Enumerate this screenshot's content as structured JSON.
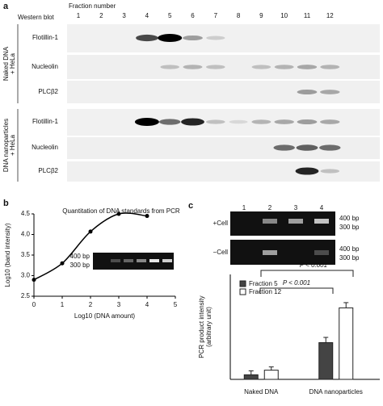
{
  "panel_a": {
    "label": "a",
    "method": "Western blot",
    "fraction_header": "Fraction number",
    "fractions": [
      "1",
      "2",
      "3",
      "4",
      "5",
      "6",
      "7",
      "8",
      "9",
      "10",
      "11",
      "12"
    ],
    "groups": [
      {
        "lines": [
          "Naked DNA",
          "+ HeLa"
        ],
        "rows": [
          "Flotillin-1",
          "Nucleolin",
          "PLCβ2"
        ]
      },
      {
        "lines": [
          "DNA nanoparticles",
          "+ HeLa"
        ],
        "rows": [
          "Flotillin-1",
          "Nucleolin",
          "PLCβ2"
        ]
      }
    ]
  },
  "panel_b": {
    "label": "b",
    "gel_labels": [
      "400 bp",
      "300 bp"
    ]
  },
  "panel_c": {
    "label": "c",
    "lanes": [
      "1",
      "2",
      "3",
      "4"
    ],
    "conditions": [
      "+Cell",
      "−Cell"
    ],
    "gel_labels": [
      "400 bp",
      "300 bp"
    ]
  },
  "chart_data": [
    {
      "type": "scatter",
      "title": "Quantitation of DNA standards from PCR",
      "x_label": "Log10 (DNA amount)",
      "y_label": "Log10 (band intensity)",
      "x": [
        0,
        1,
        2,
        3,
        4
      ],
      "values": [
        2.9,
        3.3,
        4.07,
        4.5,
        4.45
      ],
      "color": "#000000",
      "fit_line": true,
      "xlim": [
        0,
        5
      ],
      "xticks": [
        0,
        1,
        2,
        3,
        4,
        5
      ],
      "ylim": [
        2.5,
        4.5
      ],
      "yticks": [
        2.5,
        {
          "value": 3,
          "label": "3.0"
        },
        3.5,
        {
          "value": 4,
          "label": "4.0"
        },
        4.5
      ]
    },
    {
      "type": "bar",
      "y_label": [
        "PCR product intensity",
        "(arbitrary unit)"
      ],
      "categories": [
        "Naked DNA",
        "DNA nanoparticles"
      ],
      "series": [
        {
          "name": "Fraction 5",
          "color": "#444444",
          "values": [
            0.35,
            2.8
          ],
          "errors": [
            0.3,
            0.4
          ]
        },
        {
          "name": "Fraction 12",
          "color": "#ffffff",
          "values": [
            0.7,
            5.45
          ],
          "errors": [
            0.25,
            0.4
          ]
        }
      ],
      "ylim": [
        0,
        8
      ],
      "legend": "upper-left",
      "annotations": [
        "P < 0.001",
        "P < 0.001"
      ]
    }
  ]
}
